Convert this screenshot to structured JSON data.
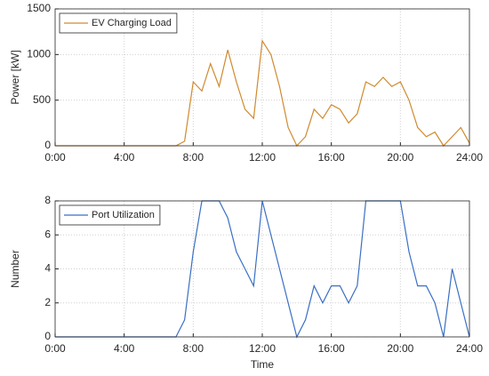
{
  "chart_data": [
    {
      "type": "line",
      "ylabel": "Power [kW]",
      "x": [
        0,
        0.5,
        1,
        1.5,
        2,
        2.5,
        3,
        3.5,
        4,
        4.5,
        5,
        5.5,
        6,
        6.5,
        7,
        7.5,
        8,
        8.5,
        9,
        9.5,
        10,
        10.5,
        11,
        11.5,
        12,
        12.5,
        13,
        13.5,
        14,
        14.5,
        15,
        15.5,
        16,
        16.5,
        17,
        17.5,
        18,
        18.5,
        19,
        19.5,
        20,
        20.5,
        21,
        21.5,
        22,
        22.5,
        23,
        23.5,
        24
      ],
      "series": [
        {
          "name": "EV Charging Load",
          "color": "#cf8a2e",
          "values": [
            0,
            0,
            0,
            0,
            0,
            0,
            0,
            0,
            0,
            0,
            0,
            0,
            0,
            0,
            0,
            50,
            700,
            600,
            900,
            650,
            1050,
            700,
            400,
            300,
            1150,
            1000,
            650,
            200,
            0,
            100,
            400,
            300,
            450,
            400,
            250,
            350,
            700,
            650,
            750,
            650,
            700,
            500,
            200,
            100,
            150,
            0,
            100,
            200,
            30
          ]
        }
      ],
      "xlim": [
        0,
        24
      ],
      "xticks": [
        {
          "value": 0,
          "label": "0:00"
        },
        {
          "value": 4,
          "label": "4:00"
        },
        {
          "value": 8,
          "label": "8:00"
        },
        {
          "value": 12,
          "label": "12:00"
        },
        {
          "value": 16,
          "label": "16:00"
        },
        {
          "value": 20,
          "label": "20:00"
        },
        {
          "value": 24,
          "label": "24:00"
        }
      ],
      "ylim": [
        0,
        1500
      ],
      "yticks": [
        0,
        500,
        1000,
        1500
      ],
      "grid": true,
      "legend": "upper left"
    },
    {
      "type": "line",
      "ylabel": "Number",
      "xlabel": "Time",
      "x": [
        0,
        0.5,
        1,
        1.5,
        2,
        2.5,
        3,
        3.5,
        4,
        4.5,
        5,
        5.5,
        6,
        6.5,
        7,
        7.5,
        8,
        8.5,
        9,
        9.5,
        10,
        10.5,
        11,
        11.5,
        12,
        12.5,
        13,
        13.5,
        14,
        14.5,
        15,
        15.5,
        16,
        16.5,
        17,
        17.5,
        18,
        18.5,
        19,
        19.5,
        20,
        20.5,
        21,
        21.5,
        22,
        22.5,
        23,
        23.5,
        24
      ],
      "series": [
        {
          "name": "Port Utilization",
          "color": "#3a6fc4",
          "values": [
            0,
            0,
            0,
            0,
            0,
            0,
            0,
            0,
            0,
            0,
            0,
            0,
            0,
            0,
            0,
            1,
            5,
            8,
            8,
            8,
            7,
            5,
            4,
            3,
            8,
            6,
            4,
            2,
            0,
            1,
            3,
            2,
            3,
            3,
            2,
            3,
            8,
            8,
            8,
            8,
            8,
            5,
            3,
            3,
            2,
            0,
            4,
            2,
            0
          ]
        }
      ],
      "xlim": [
        0,
        24
      ],
      "xticks": [
        {
          "value": 0,
          "label": "0:00"
        },
        {
          "value": 4,
          "label": "4:00"
        },
        {
          "value": 8,
          "label": "8:00"
        },
        {
          "value": 12,
          "label": "12:00"
        },
        {
          "value": 16,
          "label": "16:00"
        },
        {
          "value": 20,
          "label": "20:00"
        },
        {
          "value": 24,
          "label": "24:00"
        }
      ],
      "ylim": [
        0,
        8
      ],
      "yticks": [
        0,
        2,
        4,
        6,
        8
      ],
      "grid": true,
      "legend": "upper left"
    }
  ]
}
